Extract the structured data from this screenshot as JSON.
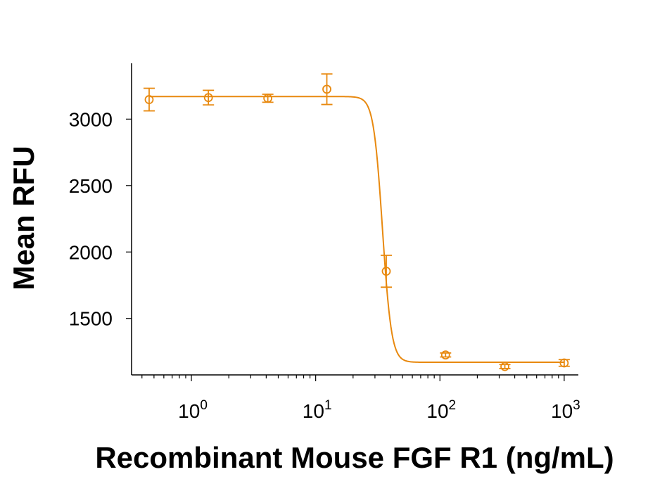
{
  "chart_data": {
    "type": "scatter",
    "title": "",
    "xlabel": "Recombinant Mouse FGF R1 (ng/mL)",
    "ylabel": "Mean RFU",
    "x_scale": "log",
    "xlim": [
      0.33,
      1300
    ],
    "ylim": [
      1075,
      3420
    ],
    "x_ticks": [
      {
        "value": 1,
        "base": "10",
        "exp": "0"
      },
      {
        "value": 10,
        "base": "10",
        "exp": "1"
      },
      {
        "value": 100,
        "base": "10",
        "exp": "2"
      },
      {
        "value": 1000,
        "base": "10",
        "exp": "3"
      }
    ],
    "y_ticks": [
      1500,
      2000,
      2500,
      3000
    ],
    "grid": false,
    "color": "#E8890F",
    "series": [
      {
        "points": [
          {
            "x": 0.457,
            "y": 3147,
            "err": 85
          },
          {
            "x": 1.37,
            "y": 3162,
            "err": 55
          },
          {
            "x": 4.12,
            "y": 3157,
            "err": 30
          },
          {
            "x": 12.3,
            "y": 3225,
            "err": 115
          },
          {
            "x": 37.0,
            "y": 1855,
            "err": 120
          },
          {
            "x": 111,
            "y": 1225,
            "err": 15
          },
          {
            "x": 333,
            "y": 1138,
            "err": 15
          },
          {
            "x": 1000,
            "y": 1165,
            "err": 25
          }
        ],
        "fit": {
          "top": 3170,
          "bottom": 1170,
          "ec50": 34.5,
          "hill": 12
        }
      }
    ]
  }
}
